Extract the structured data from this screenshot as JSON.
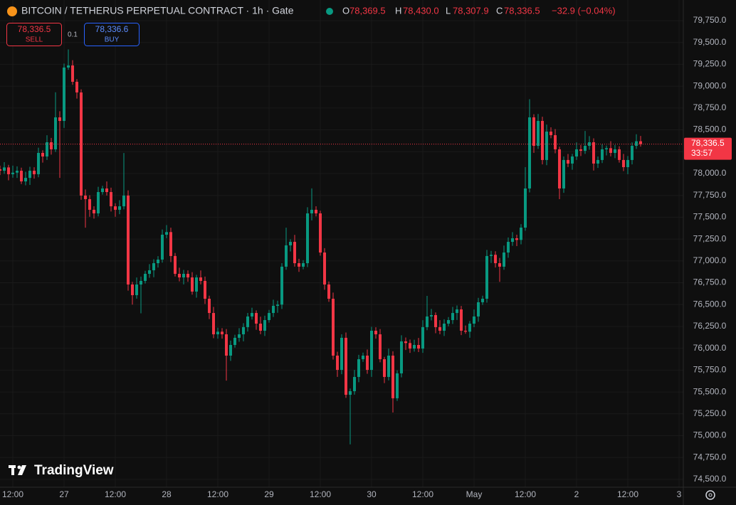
{
  "header": {
    "title": "BITCOIN / TETHERUS PERPETUAL CONTRACT · 1h · Gate",
    "ohlc": [
      {
        "key": "O",
        "value": "78,369.5"
      },
      {
        "key": "H",
        "value": "78,430.0"
      },
      {
        "key": "L",
        "value": "78,307.9"
      },
      {
        "key": "C",
        "value": "78,336.5"
      }
    ],
    "change": "−32.9 (−0.04%)"
  },
  "trade": {
    "sell_price": "78,336.5",
    "sell": "SELL",
    "size": "0.1",
    "buy_price": "78,336.6",
    "buy": "BUY"
  },
  "logo": "TradingView",
  "chart_data": {
    "type": "candlestick",
    "up_color": "#089981",
    "down_color": "#f23645",
    "grid": true,
    "categories": [
      null,
      null,
      null,
      "12:00",
      null,
      null,
      null,
      null,
      null,
      null,
      null,
      null,
      null,
      null,
      null,
      "27",
      null,
      null,
      null,
      null,
      null,
      null,
      null,
      null,
      null,
      null,
      null,
      "12:00",
      null,
      null,
      null,
      null,
      null,
      null,
      null,
      null,
      null,
      null,
      null,
      "28",
      null,
      null,
      null,
      null,
      null,
      null,
      null,
      null,
      null,
      null,
      null,
      "12:00",
      null,
      null,
      null,
      null,
      null,
      null,
      null,
      null,
      null,
      null,
      null,
      "29",
      null,
      null,
      null,
      null,
      null,
      null,
      null,
      null,
      null,
      null,
      null,
      "12:00",
      null,
      null,
      null,
      null,
      null,
      null,
      null,
      null,
      null,
      null,
      null,
      "30",
      null,
      null,
      null,
      null,
      null,
      null,
      null,
      null,
      null,
      null,
      null,
      "12:00",
      null,
      null,
      null,
      null,
      null,
      null,
      null,
      null,
      null,
      null,
      null,
      "May",
      null,
      null,
      null,
      null,
      null,
      null,
      null,
      null,
      null,
      null,
      null,
      "12:00",
      null,
      null,
      null,
      null,
      null,
      null,
      null,
      null,
      null,
      null,
      null,
      "2",
      null,
      null,
      null,
      null,
      null,
      null,
      null,
      null,
      null,
      null,
      null,
      "12:00",
      null,
      null,
      null,
      null,
      null,
      null,
      null,
      null,
      null,
      null,
      null,
      "3"
    ],
    "open": [
      78050,
      78032,
      78070,
      77992,
      78010,
      78032,
      77910,
      77950,
      78032,
      77992,
      78236,
      78195,
      78358,
      78277,
      78643,
      78602,
      79213,
      79237,
      79050,
      78928,
      77748,
      77707,
      77585,
      77544,
      77788,
      77829,
      77788,
      77625,
      77585,
      77625,
      77748,
      76730,
      76608,
      76730,
      76771,
      76852,
      76893,
      76974,
      77015,
      77300,
      77330,
      77056,
      76852,
      76811,
      76852,
      76811,
      76649,
      76811,
      76771,
      76567,
      76404,
      76160,
      76190,
      76160,
      75916,
      76038,
      76120,
      76160,
      76242,
      76364,
      76404,
      76282,
      76201,
      76323,
      76404,
      76486,
      76500,
      76934,
      77178,
      77218,
      76974,
      76934,
      76974,
      77544,
      77585,
      77544,
      77096,
      76730,
      76567,
      75916,
      75753,
      76120,
      75468,
      75509,
      75672,
      75875,
      75916,
      75753,
      76201,
      76160,
      75875,
      75672,
      75916,
      75428,
      75713,
      76079,
      76060,
      75997,
      76038,
      75997,
      76242,
      76364,
      76380,
      76242,
      76201,
      76282,
      76323,
      76404,
      76445,
      76201,
      76190,
      76282,
      76364,
      76527,
      76567,
      77056,
      77070,
      76974,
      76934,
      77096,
      77218,
      77259,
      77240,
      77381,
      77829,
      78643,
      78317,
      78602,
      78155,
      78480,
      78439,
      78277,
      77829,
      78155,
      78114,
      78195,
      78277,
      78260,
      78317,
      78358,
      78114,
      78155,
      78277,
      78290,
      78236,
      78277,
      78155,
      78073,
      78155,
      78317,
      78369.5,
      null,
      null,
      null,
      null,
      null,
      null,
      null,
      null,
      null
    ],
    "high": [
      78090,
      78130,
      78100,
      78090,
      78082,
      78067,
      78020,
      78077,
      78072,
      78296,
      78266,
      78438,
      78408,
      78930,
      78713,
      79258,
      79420,
      79297,
      79080,
      78963,
      77818,
      77752,
      77625,
      77848,
      77859,
      77909,
      77838,
      77660,
      77695,
      78235,
      77808,
      76760,
      76810,
      76821,
      76887,
      76963,
      77019,
      77055,
      77360,
      77410,
      77380,
      77091,
      76922,
      76897,
      76892,
      76871,
      76841,
      76891,
      76821,
      76602,
      76474,
      76235,
      76230,
      76220,
      76088,
      76155,
      76230,
      76287,
      76404,
      76464,
      76434,
      76362,
      76373,
      76439,
      76556,
      76545,
      76974,
      77380,
      77248,
      77298,
      77024,
      77009,
      77614,
      77830,
      77625,
      77574,
      77146,
      76765,
      76637,
      75961,
      76160,
      76180,
      75539,
      75752,
      75925,
      75951,
      75986,
      76246,
      76241,
      76220,
      75902,
      75996,
      75966,
      75748,
      76149,
      76124,
      76100,
      76098,
      76118,
      76322,
      76600,
      76450,
      76410,
      76322,
      76332,
      76358,
      76474,
      76490,
      76485,
      76261,
      76312,
      76444,
      76577,
      76602,
      77126,
      77115,
      77110,
      77034,
      77176,
      77268,
      77329,
      77300,
      77421,
      78073,
      78850,
      78678,
      78682,
      78650,
      78560,
      78529,
      78509,
      78307,
      78195,
      78224,
      78225,
      78357,
      78327,
      78487,
      78428,
      78403,
      78195,
      78337,
      78320,
      78370,
      78327,
      78312,
      78225,
      78200,
      78357,
      78450,
      78430,
      null,
      null,
      null,
      null,
      null,
      null,
      null,
      null,
      null
    ],
    "low": [
      77982,
      77997,
      77922,
      77952,
      77950,
      77880,
      77865,
      77870,
      77942,
      77957,
      78125,
      78155,
      78217,
      78247,
      77950,
      78522,
      79187,
      79015,
      78858,
      77700,
      77380,
      77505,
      77484,
      77509,
      77759,
      77748,
      77565,
      77505,
      77535,
      77590,
      76660,
      76500,
      76568,
      76400,
      76741,
      76807,
      76813,
      76924,
      76980,
      77260,
      76986,
      76822,
      76766,
      76731,
      76761,
      76614,
      76579,
      76731,
      76507,
      76334,
      76115,
      76110,
      76110,
      75630,
      75856,
      76008,
      76075,
      76080,
      76192,
      76329,
      76212,
      76161,
      76141,
      76293,
      76359,
      76406,
      76450,
      76899,
      77108,
      76934,
      76874,
      76904,
      76929,
      77464,
      77509,
      77061,
      76670,
      76532,
      75871,
      75673,
      75703,
      75433,
      74900,
      75469,
      75612,
      75845,
      75708,
      75673,
      76110,
      75840,
      75602,
      75632,
      75265,
      75398,
      75668,
      75980,
      75947,
      75962,
      75957,
      75947,
      76207,
      76319,
      76172,
      76161,
      76141,
      76252,
      76278,
      76324,
      76151,
      76166,
      76120,
      76242,
      76304,
      76497,
      76522,
      76976,
      76924,
      76760,
      76899,
      77036,
      77173,
      77170,
      77190,
      77346,
      77784,
      78237,
      78282,
      78105,
      78095,
      78404,
      78232,
      77707,
      77779,
      78074,
      78044,
      78155,
      78200,
      78225,
      78272,
      78034,
      78064,
      78120,
      78207,
      78196,
      78176,
      78125,
      78028,
      77993,
      78105,
      78282,
      78307.9,
      null,
      null,
      null,
      null,
      null,
      null,
      null,
      null,
      null
    ],
    "close": [
      78032,
      78070,
      77992,
      78010,
      78032,
      77910,
      77950,
      78032,
      77992,
      78236,
      78195,
      78358,
      78277,
      78643,
      78602,
      79213,
      79237,
      79050,
      78928,
      77748,
      77707,
      77585,
      77544,
      77788,
      77829,
      77788,
      77625,
      77585,
      77625,
      77748,
      76730,
      76608,
      76730,
      76771,
      76852,
      76893,
      76974,
      77015,
      77300,
      77330,
      77056,
      76852,
      76811,
      76852,
      76811,
      76649,
      76811,
      76771,
      76567,
      76404,
      76160,
      76190,
      76160,
      75916,
      76038,
      76120,
      76160,
      76242,
      76364,
      76404,
      76282,
      76201,
      76323,
      76404,
      76486,
      76500,
      76934,
      77178,
      77218,
      76974,
      76934,
      76974,
      77544,
      77585,
      77544,
      77096,
      76730,
      76567,
      75916,
      75753,
      76120,
      75468,
      75509,
      75672,
      75875,
      75916,
      75753,
      76201,
      76160,
      75875,
      75672,
      75916,
      75428,
      75713,
      76079,
      76060,
      75997,
      76038,
      75997,
      76242,
      76364,
      76380,
      76242,
      76201,
      76282,
      76323,
      76404,
      76445,
      76201,
      76190,
      76282,
      76364,
      76527,
      76567,
      77056,
      77070,
      76974,
      76934,
      77096,
      77218,
      77259,
      77240,
      77381,
      77829,
      78643,
      78317,
      78602,
      78155,
      78480,
      78439,
      78277,
      77829,
      78155,
      78114,
      78195,
      78277,
      78260,
      78317,
      78358,
      78114,
      78155,
      78277,
      78290,
      78236,
      78277,
      78155,
      78073,
      78155,
      78317,
      78369.5,
      78336.5,
      null,
      null,
      null,
      null,
      null,
      null,
      null,
      null,
      null
    ],
    "ylim": [
      74410,
      79986
    ],
    "yticks": [
      {
        "value": 74500,
        "label": "74,500.0"
      },
      {
        "value": 74750,
        "label": "74,750.0"
      },
      {
        "value": 75000,
        "label": "75,000.0"
      },
      {
        "value": 75250,
        "label": "75,250.0"
      },
      {
        "value": 75500,
        "label": "75,500.0"
      },
      {
        "value": 75750,
        "label": "75,750.0"
      },
      {
        "value": 76000,
        "label": "76,000.0"
      },
      {
        "value": 76250,
        "label": "76,250.0"
      },
      {
        "value": 76500,
        "label": "76,500.0"
      },
      {
        "value": 76750,
        "label": "76,750.0"
      },
      {
        "value": 77000,
        "label": "77,000.0"
      },
      {
        "value": 77250,
        "label": "77,250.0"
      },
      {
        "value": 77500,
        "label": "77,500.0"
      },
      {
        "value": 77750,
        "label": "77,750.0"
      },
      {
        "value": 78000,
        "label": "78,000.0"
      },
      {
        "value": 78250,
        "label": "78,250.0"
      },
      {
        "value": 78500,
        "label": "78,500.0"
      },
      {
        "value": 78750,
        "label": "78,750.0"
      },
      {
        "value": 79000,
        "label": "79,000.0"
      },
      {
        "value": 79250,
        "label": "79,250.0"
      },
      {
        "value": 79500,
        "label": "79,500.0"
      },
      {
        "value": 79750,
        "label": "79,750.0"
      }
    ],
    "last_price": {
      "value": 78336.5,
      "label": "78,336.5"
    },
    "countdown": "33:57"
  }
}
